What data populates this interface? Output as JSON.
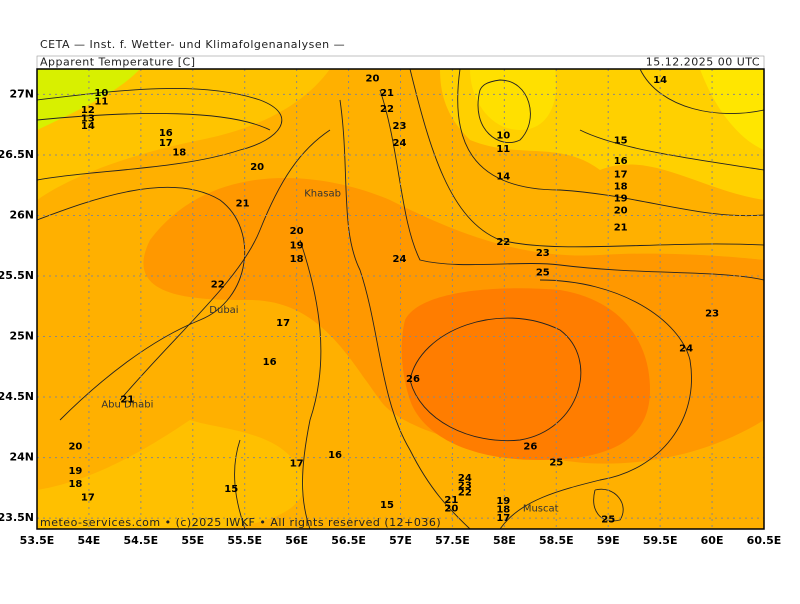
{
  "header": {
    "institute": "CETA — Inst. f. Wetter- und Klimafolgenanalysen —",
    "variable": "Apparent Temperature [C]",
    "valid_time": "15.12.2025 00 UTC"
  },
  "footer": "meteo-services.com • (c)2025 IWKF • All rights reserved (12+036)",
  "map": {
    "lonlim": [
      53.5,
      60.5
    ],
    "latlim": [
      23.41,
      27.21
    ],
    "lonticks": [
      {
        "value": 53.5,
        "label": "53.5E"
      },
      {
        "value": 54,
        "label": "54E"
      },
      {
        "value": 54.5,
        "label": "54.5E"
      },
      {
        "value": 55,
        "label": "55E"
      },
      {
        "value": 55.5,
        "label": "55.5E"
      },
      {
        "value": 56,
        "label": "56E"
      },
      {
        "value": 56.5,
        "label": "56.5E"
      },
      {
        "value": 57,
        "label": "57E"
      },
      {
        "value": 57.5,
        "label": "57.5E"
      },
      {
        "value": 58,
        "label": "58E"
      },
      {
        "value": 58.5,
        "label": "58.5E"
      },
      {
        "value": 59,
        "label": "59E"
      },
      {
        "value": 59.5,
        "label": "59.5E"
      },
      {
        "value": 60,
        "label": "60E"
      },
      {
        "value": 60.5,
        "label": "60.5E"
      }
    ],
    "latticks": [
      {
        "value": 23.5,
        "label": "23.5N"
      },
      {
        "value": 24,
        "label": "24N"
      },
      {
        "value": 24.5,
        "label": "24.5N"
      },
      {
        "value": 25,
        "label": "25N"
      },
      {
        "value": 25.5,
        "label": "25.5N"
      },
      {
        "value": 26,
        "label": "26N"
      },
      {
        "value": 26.5,
        "label": "26.5N"
      },
      {
        "value": 27,
        "label": "27N"
      }
    ],
    "cities": [
      {
        "name": "Khasab",
        "lon": 56.25,
        "lat": 26.18
      },
      {
        "name": "Dubai",
        "lon": 55.3,
        "lat": 25.22
      },
      {
        "name": "Abu Dhabi",
        "lon": 54.37,
        "lat": 24.44
      },
      {
        "name": "Muscat",
        "lon": 58.35,
        "lat": 23.58
      }
    ],
    "contour_labels": [
      {
        "value": 10,
        "lon": 54.12,
        "lat": 27.01
      },
      {
        "value": 11,
        "lon": 54.12,
        "lat": 26.94
      },
      {
        "value": 12,
        "lon": 53.99,
        "lat": 26.87
      },
      {
        "value": 13,
        "lon": 53.99,
        "lat": 26.8
      },
      {
        "value": 14,
        "lon": 53.99,
        "lat": 26.74
      },
      {
        "value": 16,
        "lon": 54.74,
        "lat": 26.68
      },
      {
        "value": 17,
        "lon": 54.74,
        "lat": 26.6
      },
      {
        "value": 18,
        "lon": 54.87,
        "lat": 26.52
      },
      {
        "value": 20,
        "lon": 55.62,
        "lat": 26.4
      },
      {
        "value": 21,
        "lon": 55.48,
        "lat": 26.1
      },
      {
        "value": 20,
        "lon": 56.0,
        "lat": 25.87
      },
      {
        "value": 19,
        "lon": 56.0,
        "lat": 25.75
      },
      {
        "value": 18,
        "lon": 56.0,
        "lat": 25.64
      },
      {
        "value": 22,
        "lon": 55.24,
        "lat": 25.43
      },
      {
        "value": 17,
        "lon": 55.87,
        "lat": 25.11
      },
      {
        "value": 16,
        "lon": 55.74,
        "lat": 24.79
      },
      {
        "value": 21,
        "lon": 54.37,
        "lat": 24.48
      },
      {
        "value": 20,
        "lon": 53.87,
        "lat": 24.09
      },
      {
        "value": 19,
        "lon": 53.87,
        "lat": 23.89
      },
      {
        "value": 18,
        "lon": 53.87,
        "lat": 23.78
      },
      {
        "value": 17,
        "lon": 53.99,
        "lat": 23.67
      },
      {
        "value": 15,
        "lon": 55.37,
        "lat": 23.74
      },
      {
        "value": 17,
        "lon": 56.0,
        "lat": 23.95
      },
      {
        "value": 16,
        "lon": 56.37,
        "lat": 24.02
      },
      {
        "value": 15,
        "lon": 56.87,
        "lat": 23.61
      },
      {
        "value": 20,
        "lon": 56.73,
        "lat": 27.13
      },
      {
        "value": 21,
        "lon": 56.87,
        "lat": 27.01
      },
      {
        "value": 22,
        "lon": 56.87,
        "lat": 26.88
      },
      {
        "value": 23,
        "lon": 56.99,
        "lat": 26.74
      },
      {
        "value": 24,
        "lon": 56.99,
        "lat": 26.6
      },
      {
        "value": 24,
        "lon": 56.99,
        "lat": 25.64
      },
      {
        "value": 10,
        "lon": 57.99,
        "lat": 26.66
      },
      {
        "value": 11,
        "lon": 57.99,
        "lat": 26.55
      },
      {
        "value": 14,
        "lon": 57.99,
        "lat": 26.32
      },
      {
        "value": 22,
        "lon": 57.99,
        "lat": 25.78
      },
      {
        "value": 23,
        "lon": 58.37,
        "lat": 25.69
      },
      {
        "value": 25,
        "lon": 58.37,
        "lat": 25.53
      },
      {
        "value": 14,
        "lon": 59.5,
        "lat": 27.12
      },
      {
        "value": 15,
        "lon": 59.12,
        "lat": 26.62
      },
      {
        "value": 16,
        "lon": 59.12,
        "lat": 26.45
      },
      {
        "value": 17,
        "lon": 59.12,
        "lat": 26.34
      },
      {
        "value": 18,
        "lon": 59.12,
        "lat": 26.24
      },
      {
        "value": 19,
        "lon": 59.12,
        "lat": 26.14
      },
      {
        "value": 20,
        "lon": 59.12,
        "lat": 26.04
      },
      {
        "value": 21,
        "lon": 59.12,
        "lat": 25.9
      },
      {
        "value": 23,
        "lon": 60.0,
        "lat": 25.19
      },
      {
        "value": 24,
        "lon": 59.75,
        "lat": 24.9
      },
      {
        "value": 26,
        "lon": 57.12,
        "lat": 24.65
      },
      {
        "value": 26,
        "lon": 58.25,
        "lat": 24.09
      },
      {
        "value": 25,
        "lon": 58.5,
        "lat": 23.96
      },
      {
        "value": 24,
        "lon": 57.62,
        "lat": 23.83
      },
      {
        "value": 23,
        "lon": 57.62,
        "lat": 23.77
      },
      {
        "value": 22,
        "lon": 57.62,
        "lat": 23.71
      },
      {
        "value": 21,
        "lon": 57.49,
        "lat": 23.65
      },
      {
        "value": 20,
        "lon": 57.49,
        "lat": 23.58
      },
      {
        "value": 19,
        "lon": 57.99,
        "lat": 23.64
      },
      {
        "value": 18,
        "lon": 57.99,
        "lat": 23.57
      },
      {
        "value": 17,
        "lon": 57.99,
        "lat": 23.5
      },
      {
        "value": 25,
        "lon": 59.0,
        "lat": 23.49
      }
    ]
  }
}
